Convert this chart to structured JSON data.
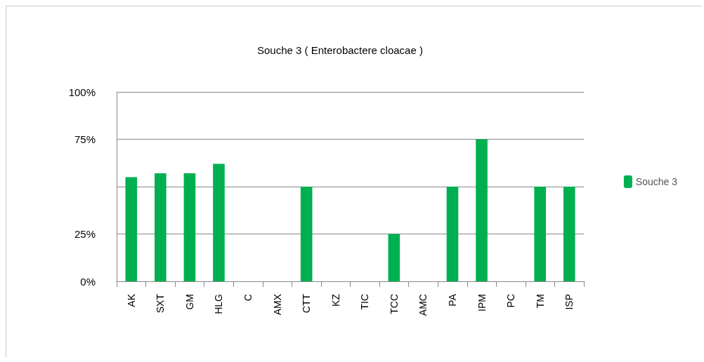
{
  "chart_data": {
    "type": "bar",
    "title": "Souche 3 ( Enterobactere cloacae )",
    "categories": [
      "AK",
      "SXT",
      "GM",
      "HLG",
      "C",
      "AMX",
      "CTT",
      "KZ",
      "TIC",
      "TCC",
      "AMC",
      "PA",
      "IPM",
      "PC",
      "TM",
      "ISP"
    ],
    "series": [
      {
        "name": "Souche 3",
        "color": "#00b050",
        "values": [
          55,
          57,
          57,
          62,
          0,
          0,
          50,
          0,
          0,
          25,
          0,
          50,
          75,
          0,
          50,
          50
        ]
      }
    ],
    "ylim": [
      0,
      100
    ],
    "yticks": [
      {
        "value": 0,
        "label": "0%"
      },
      {
        "value": 25,
        "label": "25%"
      },
      {
        "value": 50,
        "label": null
      },
      {
        "value": 75,
        "label": "75%"
      },
      {
        "value": 100,
        "label": "100%"
      }
    ],
    "grid": "y",
    "legend": "right"
  }
}
